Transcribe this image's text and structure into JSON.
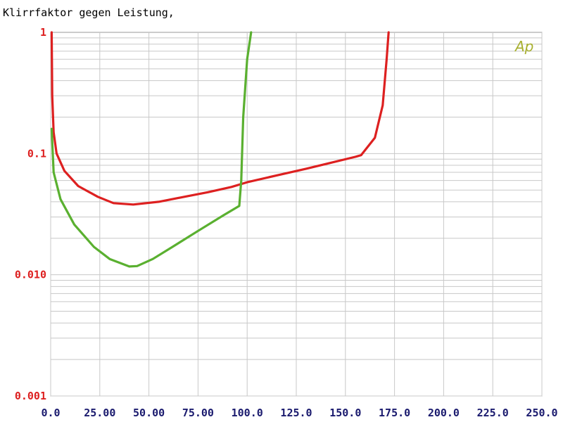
{
  "chart_data": {
    "type": "line",
    "title": "Klirrfaktor gegen Leistung,",
    "logo": "Ap",
    "xlim": [
      0,
      250
    ],
    "ylim": [
      0.001,
      1
    ],
    "y_scale": "log",
    "grid": true,
    "x_tick_labels": [
      "0.0",
      "25.00",
      "50.00",
      "75.00",
      "100.0",
      "125.0",
      "150.0",
      "175.0",
      "200.0",
      "225.0",
      "250.0"
    ],
    "y_tick_labels": [
      {
        "value": 1,
        "label": "1"
      },
      {
        "value": 0.1,
        "label": "0.1"
      },
      {
        "value": 0.01,
        "label": "0.010"
      },
      {
        "value": 0.001,
        "label": "0.001"
      }
    ],
    "series": [
      {
        "color": "#dd2020",
        "points": [
          [
            0.5,
            1.0
          ],
          [
            0.8,
            0.3
          ],
          [
            1.5,
            0.15
          ],
          [
            3,
            0.1
          ],
          [
            7,
            0.072
          ],
          [
            14,
            0.054
          ],
          [
            24,
            0.044
          ],
          [
            32,
            0.039
          ],
          [
            42,
            0.038
          ],
          [
            55,
            0.04
          ],
          [
            68,
            0.044
          ],
          [
            80,
            0.048
          ],
          [
            92,
            0.053
          ],
          [
            100,
            0.058
          ],
          [
            115,
            0.066
          ],
          [
            130,
            0.075
          ],
          [
            140,
            0.082
          ],
          [
            155,
            0.094
          ],
          [
            158,
            0.097
          ],
          [
            165,
            0.135
          ],
          [
            169,
            0.25
          ],
          [
            171,
            0.6
          ],
          [
            172,
            1.0
          ]
        ]
      },
      {
        "color": "#5ab030",
        "points": [
          [
            0.5,
            0.16
          ],
          [
            1.5,
            0.07
          ],
          [
            5,
            0.042
          ],
          [
            12,
            0.026
          ],
          [
            22,
            0.017
          ],
          [
            30,
            0.0135
          ],
          [
            40,
            0.0117
          ],
          [
            44,
            0.0118
          ],
          [
            52,
            0.0135
          ],
          [
            62,
            0.017
          ],
          [
            75,
            0.023
          ],
          [
            88,
            0.031
          ],
          [
            96,
            0.037
          ],
          [
            97,
            0.06
          ],
          [
            98,
            0.2
          ],
          [
            100,
            0.6
          ],
          [
            102,
            1.0
          ]
        ]
      }
    ]
  },
  "colors": {
    "axis_text": "#1a1a6e",
    "y_label": "#dd2020",
    "grid": "#c8c8c8",
    "frame": "#9a9a9a",
    "logo": "#a8b030"
  }
}
